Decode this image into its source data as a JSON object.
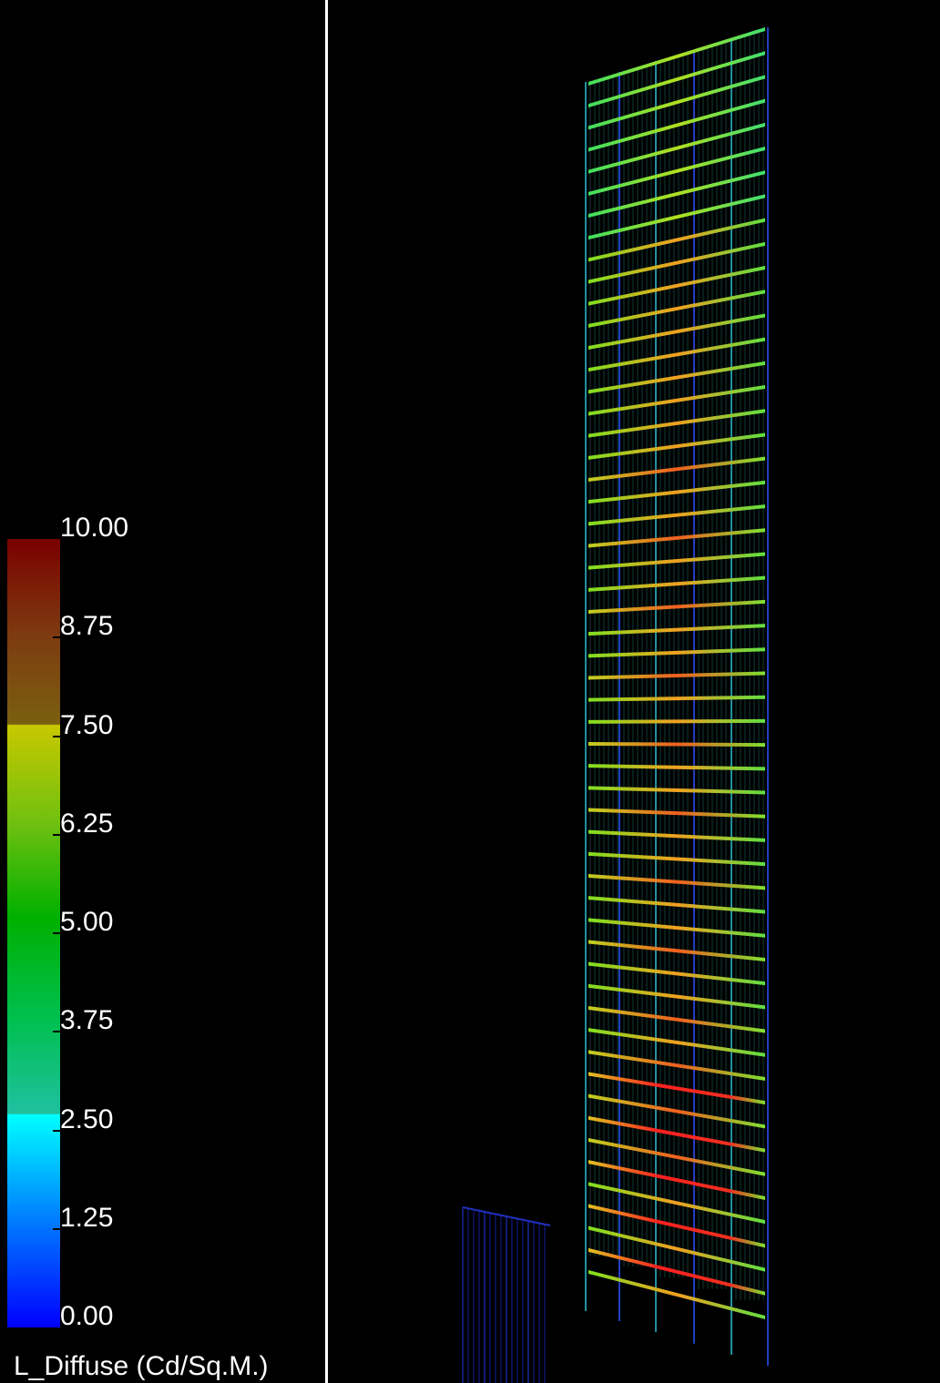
{
  "legend": {
    "title": "L_Diffuse (Cd/Sq.M.)",
    "ticks": [
      "10.00",
      "8.75",
      "7.50",
      "6.25",
      "5.00",
      "3.75",
      "2.50",
      "1.25",
      "0.00"
    ]
  }
}
